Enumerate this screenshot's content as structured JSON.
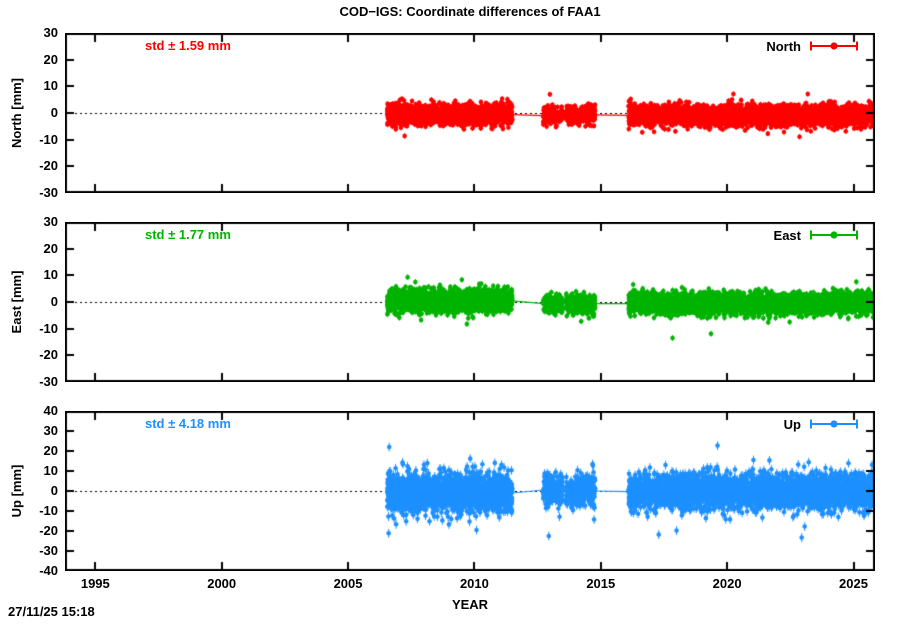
{
  "header": {
    "title": "COD−IGS: Coordinate differences of FAA1"
  },
  "footer": {
    "timestamp": "27/11/25 15:18"
  },
  "chart_data": {
    "type": "scatter",
    "title": "COD−IGS: Coordinate differences of FAA1",
    "xlabel": "YEAR",
    "x_range": [
      1993.8,
      2025.85
    ],
    "x_ticks": [
      1995,
      2000,
      2005,
      2010,
      2015,
      2020,
      2025
    ],
    "grid": "dotted-zero-line-only",
    "legend_position": "top-right-inside",
    "style": "points-with-errorbars, data gaps 2011.5-2012.7 and 2014.8-2016.1 bridged by thin line",
    "panels": [
      {
        "key_label": "North",
        "ylabel": "North [mm]",
        "std_label": "std ± 1.59 mm",
        "std_mm": 1.59,
        "color": "#ff0000",
        "y_range": [
          -30,
          30
        ],
        "y_ticks": [
          30,
          20,
          10,
          0,
          -10,
          -20,
          -30
        ],
        "ebar_mm": 1.0,
        "point_radius": 2.3,
        "max_dev_mm": 8,
        "segments": [
          {
            "start": 2006.55,
            "end": 2011.5,
            "mean": -0.6,
            "sd": 1.9,
            "per_year": 365
          },
          {
            "start": 2012.72,
            "end": 2013.5,
            "mean": -1.0,
            "sd": 1.6,
            "per_year": 260
          },
          {
            "start": 2013.62,
            "end": 2014.78,
            "mean": -0.7,
            "sd": 1.6,
            "per_year": 260
          },
          {
            "start": 2016.1,
            "end": 2025.8,
            "mean": -0.9,
            "sd": 1.9,
            "per_year": 365
          }
        ]
      },
      {
        "key_label": "East",
        "ylabel": "East [mm]",
        "std_label": "std ± 1.77 mm",
        "std_mm": 1.77,
        "color": "#00b400",
        "y_range": [
          -30,
          30
        ],
        "y_ticks": [
          30,
          20,
          10,
          0,
          -10,
          -20,
          -30
        ],
        "ebar_mm": 1.1,
        "point_radius": 2.3,
        "max_dev_mm": 13,
        "segments": [
          {
            "start": 2006.55,
            "end": 2011.5,
            "mean": 0.4,
            "sd": 2.1,
            "per_year": 365
          },
          {
            "start": 2012.72,
            "end": 2013.5,
            "mean": -0.6,
            "sd": 1.7,
            "per_year": 260
          },
          {
            "start": 2013.62,
            "end": 2014.78,
            "mean": -0.6,
            "sd": 1.7,
            "per_year": 260
          },
          {
            "start": 2016.1,
            "end": 2025.8,
            "mean": -0.6,
            "sd": 2.0,
            "per_year": 365
          }
        ]
      },
      {
        "key_label": "Up",
        "ylabel": "Up [mm]",
        "std_label": "std ± 4.18 mm",
        "std_mm": 4.18,
        "color": "#1e90ff",
        "y_range": [
          -40,
          40
        ],
        "y_ticks": [
          40,
          30,
          20,
          10,
          0,
          -10,
          -20,
          -30,
          -40
        ],
        "ebar_mm": 2.2,
        "point_radius": 2.3,
        "max_dev_mm": 23,
        "segments": [
          {
            "start": 2006.55,
            "end": 2011.5,
            "mean": -1.0,
            "sd": 4.6,
            "per_year": 365
          },
          {
            "start": 2012.72,
            "end": 2013.5,
            "mean": 0.5,
            "sd": 3.8,
            "per_year": 260
          },
          {
            "start": 2013.62,
            "end": 2014.78,
            "mean": 0.0,
            "sd": 3.8,
            "per_year": 260
          },
          {
            "start": 2016.1,
            "end": 2025.8,
            "mean": -0.3,
            "sd": 4.3,
            "per_year": 365
          }
        ]
      }
    ]
  }
}
